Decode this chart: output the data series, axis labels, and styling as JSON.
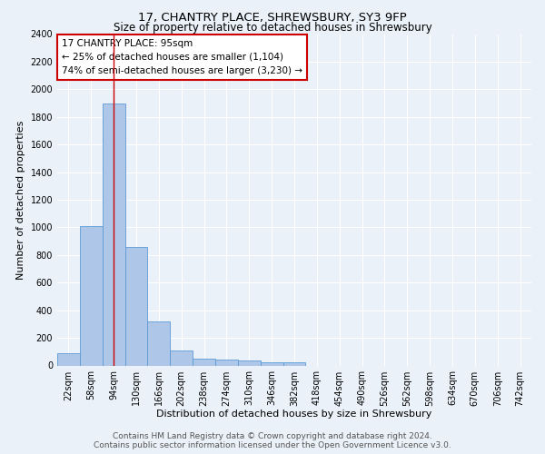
{
  "title": "17, CHANTRY PLACE, SHREWSBURY, SY3 9FP",
  "subtitle": "Size of property relative to detached houses in Shrewsbury",
  "xlabel": "Distribution of detached houses by size in Shrewsbury",
  "ylabel": "Number of detached properties",
  "bar_labels": [
    "22sqm",
    "58sqm",
    "94sqm",
    "130sqm",
    "166sqm",
    "202sqm",
    "238sqm",
    "274sqm",
    "310sqm",
    "346sqm",
    "382sqm",
    "418sqm",
    "454sqm",
    "490sqm",
    "526sqm",
    "562sqm",
    "598sqm",
    "634sqm",
    "670sqm",
    "706sqm",
    "742sqm"
  ],
  "bar_values": [
    90,
    1010,
    1900,
    860,
    320,
    110,
    50,
    45,
    35,
    20,
    20,
    0,
    0,
    0,
    0,
    0,
    0,
    0,
    0,
    0,
    0
  ],
  "bar_color": "#aec6e8",
  "bar_edge_color": "#5b9bd5",
  "background_color": "#eaf1f8",
  "grid_color": "#ffffff",
  "property_line_x": 2,
  "property_line_color": "#cc0000",
  "ylim": [
    0,
    2400
  ],
  "yticks": [
    0,
    200,
    400,
    600,
    800,
    1000,
    1200,
    1400,
    1600,
    1800,
    2000,
    2200,
    2400
  ],
  "annotation_title": "17 CHANTRY PLACE: 95sqm",
  "annotation_line1": "← 25% of detached houses are smaller (1,104)",
  "annotation_line2": "74% of semi-detached houses are larger (3,230) →",
  "annotation_box_color": "#ffffff",
  "annotation_box_edge": "#cc0000",
  "footer_line1": "Contains HM Land Registry data © Crown copyright and database right 2024.",
  "footer_line2": "Contains public sector information licensed under the Open Government Licence v3.0.",
  "title_fontsize": 9.5,
  "subtitle_fontsize": 8.5,
  "xlabel_fontsize": 8,
  "ylabel_fontsize": 8,
  "tick_fontsize": 7,
  "annotation_fontsize": 7.5,
  "footer_fontsize": 6.5
}
